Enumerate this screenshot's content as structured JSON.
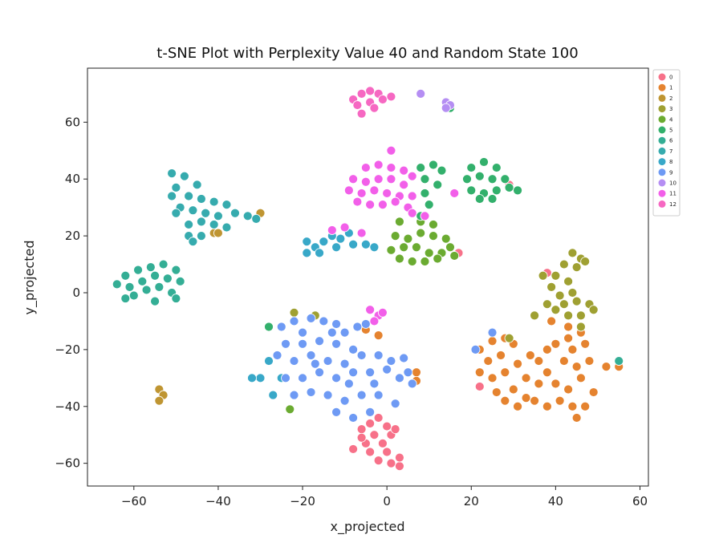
{
  "chart_data": {
    "type": "scatter",
    "title": "t-SNE Plot with Perplexity Value 40 and Random State 100",
    "xlabel": "x_projected",
    "ylabel": "y_projected",
    "xlim": [
      -71,
      62
    ],
    "ylim": [
      -68,
      79
    ],
    "xticks": [
      -60,
      -40,
      -20,
      0,
      20,
      40,
      60
    ],
    "yticks": [
      -60,
      -40,
      -20,
      0,
      20,
      40,
      60
    ],
    "xtick_labels": [
      "−60",
      "−40",
      "−20",
      "0",
      "20",
      "40",
      "60"
    ],
    "ytick_labels": [
      "−60",
      "−40",
      "−20",
      "0",
      "20",
      "40",
      "60"
    ],
    "grid": false,
    "legend_position": "outside-top-right",
    "series": [
      {
        "name": "0",
        "color": "#f77189",
        "points": [
          [
            -4,
            -46
          ],
          [
            -2,
            -44
          ],
          [
            0,
            -47
          ],
          [
            -6,
            -48
          ],
          [
            -3,
            -50
          ],
          [
            1,
            -50
          ],
          [
            -5,
            -53
          ],
          [
            -1,
            -53
          ],
          [
            2,
            -48
          ],
          [
            -8,
            -55
          ],
          [
            -4,
            -56
          ],
          [
            0,
            -56
          ],
          [
            -2,
            -59
          ],
          [
            1,
            -60
          ],
          [
            3,
            -61
          ],
          [
            3,
            -58
          ],
          [
            -6,
            -51
          ],
          [
            22,
            -33
          ],
          [
            29,
            38
          ],
          [
            17,
            14
          ],
          [
            38,
            7
          ]
        ]
      },
      {
        "name": "1",
        "color": "#e5832f",
        "points": [
          [
            22,
            -20
          ],
          [
            25,
            -17
          ],
          [
            28,
            -16
          ],
          [
            30,
            -18
          ],
          [
            24,
            -24
          ],
          [
            27,
            -22
          ],
          [
            22,
            -28
          ],
          [
            25,
            -30
          ],
          [
            28,
            -28
          ],
          [
            31,
            -25
          ],
          [
            34,
            -22
          ],
          [
            36,
            -24
          ],
          [
            38,
            -20
          ],
          [
            40,
            -18
          ],
          [
            43,
            -16
          ],
          [
            46,
            -14
          ],
          [
            44,
            -20
          ],
          [
            47,
            -18
          ],
          [
            42,
            -24
          ],
          [
            45,
            -26
          ],
          [
            48,
            -24
          ],
          [
            26,
            -35
          ],
          [
            30,
            -34
          ],
          [
            33,
            -30
          ],
          [
            36,
            -32
          ],
          [
            38,
            -28
          ],
          [
            40,
            -32
          ],
          [
            43,
            -34
          ],
          [
            46,
            -30
          ],
          [
            28,
            -38
          ],
          [
            31,
            -40
          ],
          [
            35,
            -38
          ],
          [
            38,
            -40
          ],
          [
            41,
            -38
          ],
          [
            44,
            -40
          ],
          [
            47,
            -40
          ],
          [
            45,
            -44
          ],
          [
            52,
            -26
          ],
          [
            55,
            -26
          ],
          [
            39,
            -10
          ],
          [
            43,
            -12
          ],
          [
            7,
            -28
          ],
          [
            7,
            -31
          ],
          [
            -5,
            -13
          ],
          [
            -2,
            -15
          ],
          [
            33,
            -37
          ],
          [
            49,
            -35
          ]
        ]
      },
      {
        "name": "2",
        "color": "#bf9532",
        "points": [
          [
            -54,
            -34
          ],
          [
            -53,
            -36
          ],
          [
            -54,
            -38
          ],
          [
            -41,
            21
          ],
          [
            -40,
            21
          ],
          [
            -30,
            28
          ]
        ]
      },
      {
        "name": "3",
        "color": "#9fa032",
        "points": [
          [
            44,
            14
          ],
          [
            46,
            12
          ],
          [
            42,
            10
          ],
          [
            45,
            9
          ],
          [
            47,
            11
          ],
          [
            40,
            6
          ],
          [
            43,
            4
          ],
          [
            37,
            6
          ],
          [
            39,
            2
          ],
          [
            41,
            -1
          ],
          [
            44,
            0
          ],
          [
            42,
            -4
          ],
          [
            45,
            -3
          ],
          [
            48,
            -4
          ],
          [
            40,
            -6
          ],
          [
            43,
            -8
          ],
          [
            46,
            -8
          ],
          [
            49,
            -6
          ],
          [
            38,
            -4
          ],
          [
            35,
            -8
          ],
          [
            46,
            -12
          ],
          [
            -22,
            -7
          ],
          [
            -17,
            -8
          ],
          [
            29,
            -16
          ]
        ]
      },
      {
        "name": "4",
        "color": "#6bab31",
        "points": [
          [
            3,
            25
          ],
          [
            8,
            25
          ],
          [
            11,
            24
          ],
          [
            2,
            20
          ],
          [
            5,
            19
          ],
          [
            8,
            21
          ],
          [
            11,
            20
          ],
          [
            14,
            19
          ],
          [
            1,
            15
          ],
          [
            4,
            16
          ],
          [
            7,
            16
          ],
          [
            10,
            14
          ],
          [
            13,
            14
          ],
          [
            16,
            13
          ],
          [
            3,
            12
          ],
          [
            6,
            11
          ],
          [
            9,
            11
          ],
          [
            12,
            12
          ],
          [
            15,
            16
          ],
          [
            -23,
            -41
          ]
        ]
      },
      {
        "name": "5",
        "color": "#33b06c",
        "points": [
          [
            20,
            44
          ],
          [
            23,
            46
          ],
          [
            26,
            44
          ],
          [
            19,
            40
          ],
          [
            22,
            41
          ],
          [
            25,
            40
          ],
          [
            28,
            40
          ],
          [
            20,
            36
          ],
          [
            23,
            35
          ],
          [
            26,
            36
          ],
          [
            29,
            37
          ],
          [
            22,
            33
          ],
          [
            25,
            33
          ],
          [
            31,
            36
          ],
          [
            8,
            44
          ],
          [
            11,
            45
          ],
          [
            13,
            43
          ],
          [
            9,
            40
          ],
          [
            12,
            38
          ],
          [
            9,
            35
          ],
          [
            10,
            31
          ],
          [
            8,
            27
          ],
          [
            15,
            65
          ],
          [
            -28,
            -12
          ]
        ]
      },
      {
        "name": "6",
        "color": "#34ae95",
        "points": [
          [
            -64,
            3
          ],
          [
            -62,
            6
          ],
          [
            -59,
            8
          ],
          [
            -56,
            9
          ],
          [
            -53,
            10
          ],
          [
            -50,
            8
          ],
          [
            -61,
            2
          ],
          [
            -58,
            4
          ],
          [
            -55,
            6
          ],
          [
            -52,
            5
          ],
          [
            -49,
            4
          ],
          [
            -60,
            -1
          ],
          [
            -57,
            1
          ],
          [
            -54,
            2
          ],
          [
            -51,
            0
          ],
          [
            -55,
            -3
          ],
          [
            -50,
            -2
          ],
          [
            -62,
            -2
          ],
          [
            55,
            -24
          ]
        ]
      },
      {
        "name": "7",
        "color": "#36abae",
        "points": [
          [
            -51,
            42
          ],
          [
            -48,
            41
          ],
          [
            -45,
            38
          ],
          [
            -50,
            37
          ],
          [
            -47,
            34
          ],
          [
            -44,
            33
          ],
          [
            -41,
            32
          ],
          [
            -38,
            31
          ],
          [
            -51,
            34
          ],
          [
            -49,
            30
          ],
          [
            -46,
            29
          ],
          [
            -43,
            28
          ],
          [
            -40,
            27
          ],
          [
            -36,
            28
          ],
          [
            -33,
            27
          ],
          [
            -31,
            26
          ],
          [
            -50,
            28
          ],
          [
            -47,
            24
          ],
          [
            -44,
            25
          ],
          [
            -41,
            24
          ],
          [
            -38,
            23
          ],
          [
            -47,
            20
          ],
          [
            -44,
            20
          ],
          [
            -46,
            18
          ]
        ]
      },
      {
        "name": "8",
        "color": "#38a8c8",
        "points": [
          [
            -19,
            18
          ],
          [
            -17,
            16
          ],
          [
            -15,
            18
          ],
          [
            -13,
            20
          ],
          [
            -11,
            19
          ],
          [
            -9,
            21
          ],
          [
            -12,
            16
          ],
          [
            -8,
            17
          ],
          [
            -5,
            17
          ],
          [
            -19,
            14
          ],
          [
            -16,
            14
          ],
          [
            -3,
            16
          ],
          [
            -28,
            -24
          ],
          [
            -30,
            -30
          ],
          [
            -27,
            -36
          ],
          [
            -25,
            -30
          ],
          [
            -32,
            -30
          ]
        ]
      },
      {
        "name": "9",
        "color": "#6e9af4",
        "points": [
          [
            -25,
            -12
          ],
          [
            -22,
            -10
          ],
          [
            -18,
            -9
          ],
          [
            -15,
            -10
          ],
          [
            -12,
            -11
          ],
          [
            -10,
            -14
          ],
          [
            -7,
            -12
          ],
          [
            -5,
            -11
          ],
          [
            -24,
            -18
          ],
          [
            -20,
            -18
          ],
          [
            -16,
            -17
          ],
          [
            -12,
            -18
          ],
          [
            -8,
            -20
          ],
          [
            -26,
            -22
          ],
          [
            -22,
            -24
          ],
          [
            -18,
            -22
          ],
          [
            -14,
            -24
          ],
          [
            -10,
            -25
          ],
          [
            -6,
            -22
          ],
          [
            -2,
            -22
          ],
          [
            1,
            -24
          ],
          [
            4,
            -23
          ],
          [
            -24,
            -30
          ],
          [
            -20,
            -30
          ],
          [
            -16,
            -28
          ],
          [
            -12,
            -30
          ],
          [
            -8,
            -28
          ],
          [
            -4,
            -28
          ],
          [
            0,
            -27
          ],
          [
            3,
            -30
          ],
          [
            6,
            -32
          ],
          [
            -22,
            -36
          ],
          [
            -18,
            -35
          ],
          [
            -14,
            -36
          ],
          [
            -10,
            -38
          ],
          [
            -6,
            -36
          ],
          [
            -2,
            -36
          ],
          [
            -12,
            -42
          ],
          [
            -8,
            -44
          ],
          [
            -4,
            -42
          ],
          [
            2,
            -39
          ],
          [
            -9,
            -32
          ],
          [
            -17,
            -25
          ],
          [
            -13,
            -14
          ],
          [
            -3,
            -32
          ],
          [
            5,
            -28
          ],
          [
            -20,
            -14
          ],
          [
            25,
            -14
          ],
          [
            21,
            -20
          ]
        ]
      },
      {
        "name": "10",
        "color": "#b58ef3",
        "points": [
          [
            8,
            70
          ],
          [
            14,
            67
          ],
          [
            15,
            66
          ],
          [
            14,
            65
          ]
        ]
      },
      {
        "name": "11",
        "color": "#f25fe9",
        "points": [
          [
            -5,
            44
          ],
          [
            -2,
            45
          ],
          [
            1,
            44
          ],
          [
            4,
            43
          ],
          [
            6,
            41
          ],
          [
            -8,
            40
          ],
          [
            -5,
            39
          ],
          [
            -2,
            40
          ],
          [
            1,
            40
          ],
          [
            4,
            38
          ],
          [
            -9,
            36
          ],
          [
            -6,
            35
          ],
          [
            -3,
            36
          ],
          [
            0,
            35
          ],
          [
            3,
            34
          ],
          [
            6,
            34
          ],
          [
            -7,
            32
          ],
          [
            -4,
            31
          ],
          [
            -1,
            31
          ],
          [
            2,
            32
          ],
          [
            5,
            30
          ],
          [
            6,
            28
          ],
          [
            9,
            27
          ],
          [
            1,
            50
          ],
          [
            -10,
            23
          ],
          [
            -13,
            22
          ],
          [
            -6,
            21
          ],
          [
            -4,
            -6
          ],
          [
            -2,
            -8
          ],
          [
            -3,
            -10
          ],
          [
            -1,
            -7
          ],
          [
            16,
            35
          ]
        ]
      },
      {
        "name": "12",
        "color": "#f668c2",
        "points": [
          [
            -8,
            68
          ],
          [
            -6,
            70
          ],
          [
            -4,
            71
          ],
          [
            -2,
            70
          ],
          [
            -7,
            66
          ],
          [
            -4,
            67
          ],
          [
            -1,
            68
          ],
          [
            -3,
            65
          ],
          [
            -6,
            63
          ],
          [
            1,
            69
          ]
        ]
      }
    ]
  }
}
